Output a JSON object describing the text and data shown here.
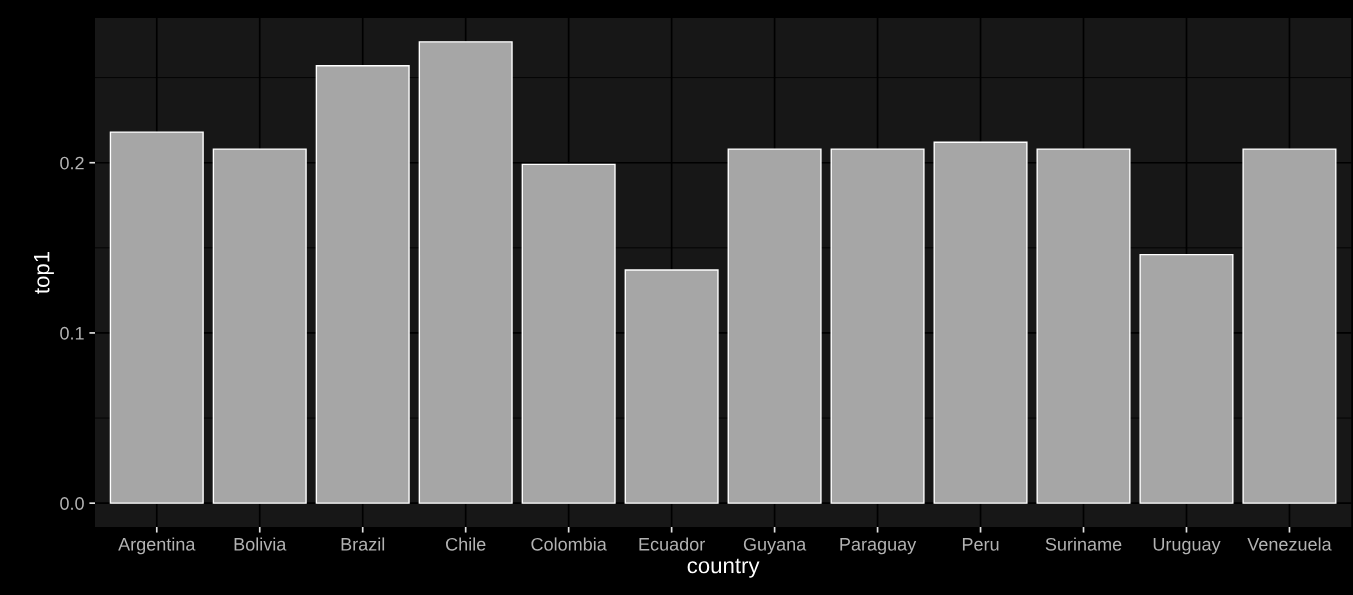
{
  "chart_data": {
    "type": "bar",
    "xlabel": "country",
    "ylabel": "top1",
    "categories": [
      "Argentina",
      "Bolivia",
      "Brazil",
      "Chile",
      "Colombia",
      "Ecuador",
      "Guyana",
      "Paraguay",
      "Peru",
      "Suriname",
      "Uruguay",
      "Venezuela"
    ],
    "values": [
      0.218,
      0.208,
      0.257,
      0.271,
      0.199,
      0.137,
      0.208,
      0.208,
      0.212,
      0.208,
      0.146,
      0.208
    ],
    "color": "#a6a6a6",
    "ylim": [
      -0.014,
      0.285
    ],
    "yticks": [
      {
        "value": 0,
        "label": "0.0"
      },
      {
        "value": 0.1,
        "label": "0.1"
      },
      {
        "value": 0.2,
        "label": "0.2"
      }
    ],
    "grid": true
  }
}
